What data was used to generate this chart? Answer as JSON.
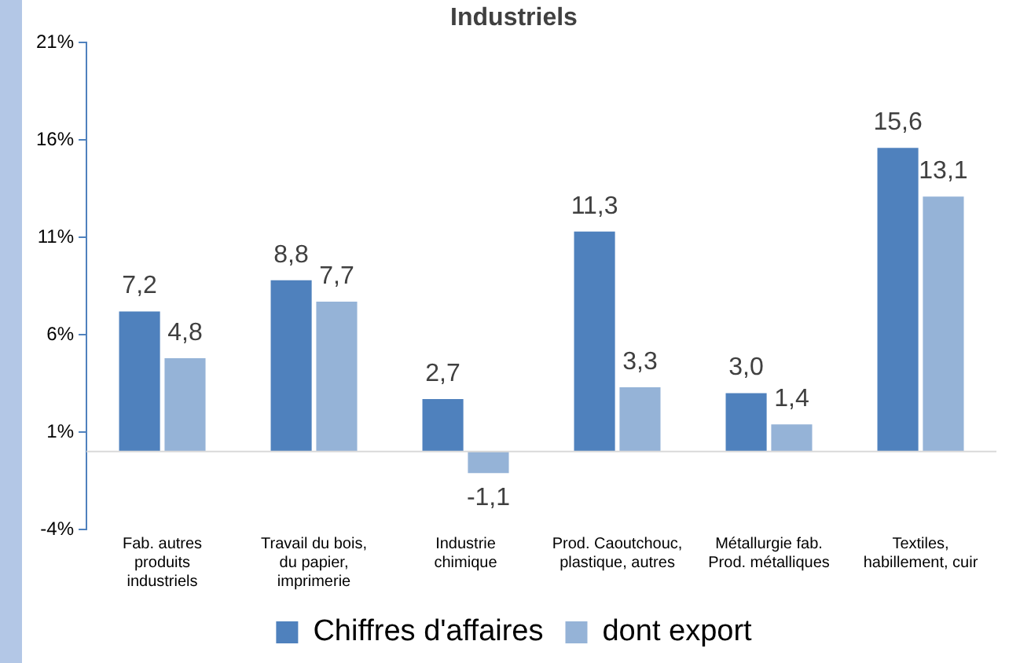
{
  "chart_data": {
    "type": "bar",
    "title": "Industriels",
    "categories": [
      "Fab. autres produits industriels",
      "Travail du bois, du papier, imprimerie",
      "Industrie chimique",
      "Prod. Caoutchouc, plastique, autres",
      "Métallurgie fab. Prod. métalliques",
      "Textiles, habillement, cuir"
    ],
    "series": [
      {
        "name": "Chiffres d'affaires",
        "color": "#4f81bd",
        "values": [
          7.2,
          8.8,
          2.7,
          11.3,
          3.0,
          15.6
        ],
        "value_labels": [
          "7,2",
          "8,8",
          "2,7",
          "11,3",
          "3,0",
          "15,6"
        ]
      },
      {
        "name": "dont export",
        "color": "#95b3d7",
        "values": [
          4.8,
          7.7,
          -1.1,
          3.3,
          1.4,
          13.1
        ],
        "value_labels": [
          "4,8",
          "7,7",
          "-1,1",
          "3,3",
          "1,4",
          "13,1"
        ]
      }
    ],
    "ylim": [
      -4,
      21
    ],
    "yticks": [
      {
        "value": -4,
        "label": "-4%"
      },
      {
        "value": 1,
        "label": "1%"
      },
      {
        "value": 6,
        "label": "6%"
      },
      {
        "value": 11,
        "label": "11%"
      },
      {
        "value": 16,
        "label": "16%"
      },
      {
        "value": 21,
        "label": "21%"
      }
    ],
    "legend": "bottom"
  }
}
